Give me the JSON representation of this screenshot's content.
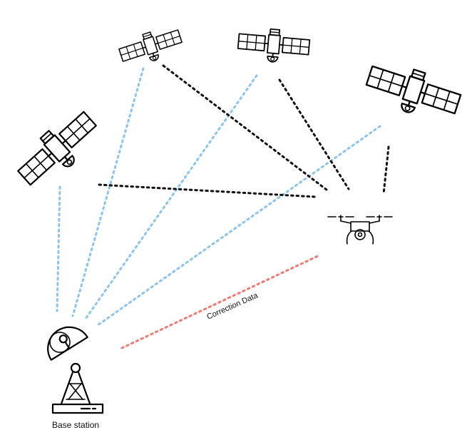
{
  "labels": {
    "base_station": "Base station",
    "correction_data": "Correction Data"
  },
  "colors": {
    "satellite_signal": "#8cc4ec",
    "drone_signal": "#111111",
    "correction_link": "#ee7a74"
  },
  "icons": [
    "satellite-icon",
    "drone-icon",
    "base-station-icon"
  ]
}
